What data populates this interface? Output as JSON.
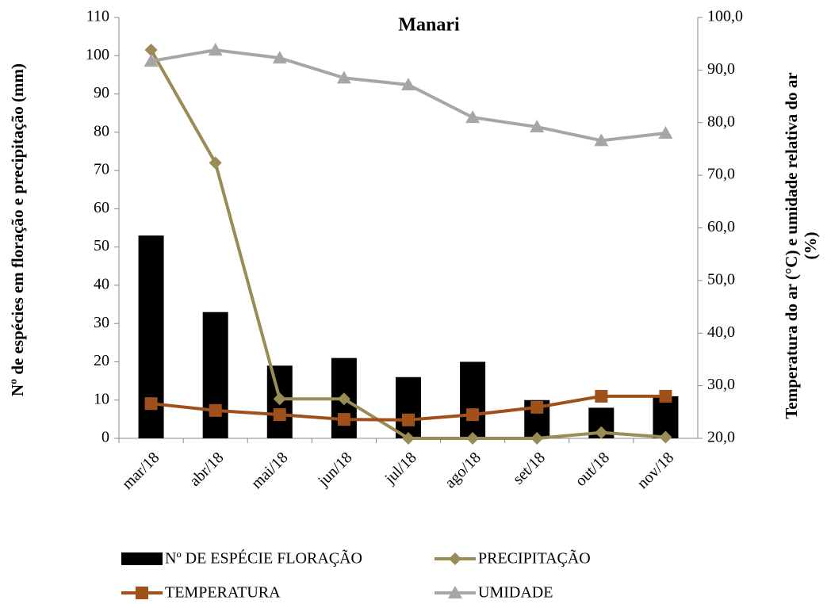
{
  "chart_data": {
    "type": "bar",
    "title": "Manari",
    "categories": [
      "mar/18",
      "abr/18",
      "mai/18",
      "jun/18",
      "jul/18",
      "ago/18",
      "set/18",
      "out/18",
      "nov/18"
    ],
    "series": [
      {
        "name": "Nº DE ESPÉCIE FLORAÇÃO",
        "type": "bar",
        "color": "#000000",
        "values": [
          53,
          33,
          19,
          21,
          16,
          20,
          10,
          8,
          11
        ]
      },
      {
        "name": "PRECIPITAÇÃO",
        "type": "line",
        "marker": "diamond",
        "color": "#9a8c55",
        "values": [
          101.5,
          72,
          10.3,
          10.3,
          0,
          0,
          0,
          1.5,
          0.3
        ]
      },
      {
        "name": "TEMPERATURA",
        "type": "line",
        "marker": "square",
        "axis": "y2",
        "color": "#a0501a",
        "values": [
          26.6,
          25.3,
          24.5,
          23.6,
          23.5,
          24.5,
          25.9,
          28.0,
          28.0
        ]
      },
      {
        "name": "UMIDADE",
        "type": "line",
        "marker": "triangle",
        "axis": "y2",
        "color": "#a6a6a6",
        "values": [
          91.7,
          93.8,
          92.3,
          88.5,
          87.2,
          81.0,
          79.2,
          76.6,
          78.0
        ]
      }
    ],
    "ylabel": "Nº de espécies em floração e precipitação (mm)",
    "y2label": [
      "Temperatura  do ar (°C) e umidade relativa do ar",
      "(%)"
    ],
    "ylim": [
      0,
      110
    ],
    "yticks": [
      0,
      10,
      20,
      30,
      40,
      50,
      60,
      70,
      80,
      90,
      100,
      110
    ],
    "y2lim": [
      20,
      100
    ],
    "y2ticks": [
      {
        "value": 20,
        "label": "20,0"
      },
      {
        "value": 30,
        "label": "30,0"
      },
      {
        "value": 40,
        "label": "40,0"
      },
      {
        "value": 50,
        "label": "50,0"
      },
      {
        "value": 60,
        "label": "60,0"
      },
      {
        "value": 70,
        "label": "70,0"
      },
      {
        "value": 80,
        "label": "80,0"
      },
      {
        "value": 90,
        "label": "90,0"
      },
      {
        "value": 100,
        "label": "100,0"
      }
    ],
    "legend": "bottom"
  }
}
